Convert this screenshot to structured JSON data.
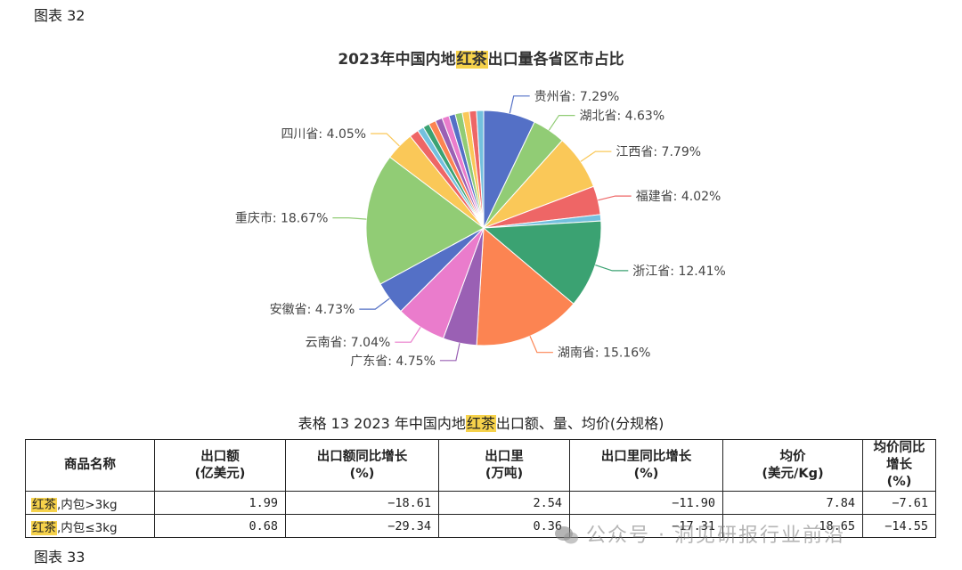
{
  "figure_top": "图表 32",
  "figure_bottom": "图表 33",
  "chart_data": {
    "type": "pie",
    "title_pre": "2023年中国内地",
    "title_hl": "红茶",
    "title_post": "出口量各省区市占比",
    "slices": [
      {
        "name": "贵州省",
        "value": 7.29,
        "label": "贵州省: 7.29%",
        "color": "#5470c6"
      },
      {
        "name": "湖北省",
        "value": 4.63,
        "label": "湖北省: 4.63%",
        "color": "#91cc75"
      },
      {
        "name": "江西省",
        "value": 7.79,
        "label": "江西省: 7.79%",
        "color": "#fac858"
      },
      {
        "name": "福建省",
        "value": 4.02,
        "label": "福建省: 4.02%",
        "color": "#ee6666"
      },
      {
        "name": "other-1",
        "value": 0.9,
        "label": "",
        "color": "#73c0de"
      },
      {
        "name": "浙江省",
        "value": 12.41,
        "label": "浙江省: 12.41%",
        "color": "#3ba272"
      },
      {
        "name": "湖南省",
        "value": 15.16,
        "label": "湖南省: 15.16%",
        "color": "#fc8452"
      },
      {
        "name": "广东省",
        "value": 4.75,
        "label": "广东省: 4.75%",
        "color": "#9a60b4"
      },
      {
        "name": "云南省",
        "value": 7.04,
        "label": "云南省: 7.04%",
        "color": "#ea7ccc"
      },
      {
        "name": "安徽省",
        "value": 4.73,
        "label": "安徽省: 4.73%",
        "color": "#5470c6"
      },
      {
        "name": "重庆市",
        "value": 18.67,
        "label": "重庆市: 18.67%",
        "color": "#91cc75"
      },
      {
        "name": "四川省",
        "value": 4.05,
        "label": "四川省: 4.05%",
        "color": "#fac858"
      },
      {
        "name": "other-2",
        "value": 1.3,
        "label": "",
        "color": "#ee6666"
      },
      {
        "name": "other-3",
        "value": 0.9,
        "label": "",
        "color": "#73c0de"
      },
      {
        "name": "other-4",
        "value": 0.9,
        "label": "",
        "color": "#3ba272"
      },
      {
        "name": "other-5",
        "value": 1.0,
        "label": "",
        "color": "#fc8452"
      },
      {
        "name": "other-6",
        "value": 1.0,
        "label": "",
        "color": "#9a60b4"
      },
      {
        "name": "other-7",
        "value": 1.0,
        "label": "",
        "color": "#ea7ccc"
      },
      {
        "name": "other-8",
        "value": 0.9,
        "label": "",
        "color": "#5470c6"
      },
      {
        "name": "other-9",
        "value": 1.0,
        "label": "",
        "color": "#91cc75"
      },
      {
        "name": "other-10",
        "value": 1.0,
        "label": "",
        "color": "#fac858"
      },
      {
        "name": "other-11",
        "value": 1.0,
        "label": "",
        "color": "#ee6666"
      },
      {
        "name": "other-12",
        "value": 1.0,
        "label": "",
        "color": "#73c0de"
      }
    ]
  },
  "table": {
    "title_pre": "表格 13 2023 年中国内地",
    "title_hl": "红茶",
    "title_post": "出口额、量、均价(分规格)",
    "headers": [
      {
        "l1": "商品名称",
        "l2": ""
      },
      {
        "l1": "出口额",
        "l2": "(亿美元)"
      },
      {
        "l1": "出口额同比增长",
        "l2": "(%)"
      },
      {
        "l1": "出口里",
        "l2": "(万吨)"
      },
      {
        "l1": "出口里同比增长",
        "l2": "(%)"
      },
      {
        "l1": "均价",
        "l2": "(美元/Kg)"
      },
      {
        "l1": "均价同比增长",
        "l2": "(%)"
      }
    ],
    "rows": [
      {
        "name_hl": "红茶",
        "name_rest": ",内包>3kg",
        "values": [
          "1.99",
          "−18.61",
          "2.54",
          "−11.90",
          "7.84",
          "−7.61"
        ]
      },
      {
        "name_hl": "红茶",
        "name_rest": ",内包≤3kg",
        "values": [
          "0.68",
          "−29.34",
          "0.36",
          "−17.31",
          "18.65",
          "−14.55"
        ]
      }
    ]
  },
  "watermark": "公众号 · 洞见研报行业前沿"
}
